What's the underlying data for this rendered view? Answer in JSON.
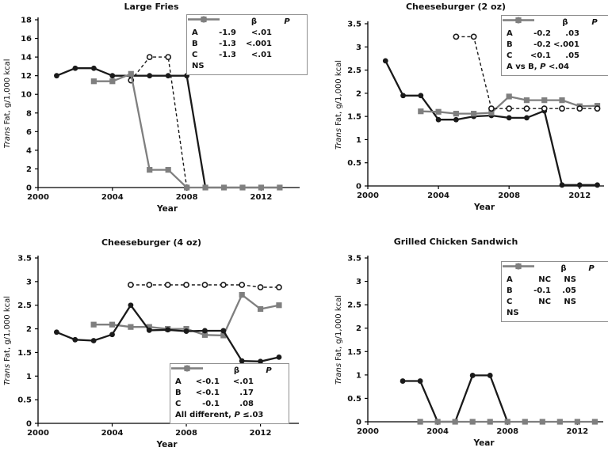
{
  "colors": {
    "black": "#1a1a1a",
    "gray": "#7f7f7f",
    "legend_border": "#8f8f8f",
    "background": "#ffffff"
  },
  "chart_data": [
    {
      "type": "line",
      "title": "Large Fries",
      "xlabel": "Year",
      "ylabel": {
        "italic": "Trans",
        "rest": "Fat, g/1,000 kcal"
      },
      "xlim": [
        2000,
        2013.9
      ],
      "ylim": [
        0,
        18
      ],
      "xticks": [
        "2000",
        "2004",
        "2008",
        "2012"
      ],
      "yticks": [
        "0",
        "2",
        "4",
        "6",
        "8",
        "10",
        "12",
        "14",
        "16",
        "18"
      ],
      "legend_position": "top-right",
      "grid": false,
      "series": [
        {
          "key": "A",
          "points": [
            [
              2005,
              11.5
            ],
            [
              2006,
              14
            ],
            [
              2007,
              14
            ],
            [
              2008,
              0
            ]
          ]
        },
        {
          "key": "B",
          "points": [
            [
              2001,
              12
            ],
            [
              2002,
              12.8
            ],
            [
              2003,
              12.8
            ],
            [
              2004,
              12
            ],
            [
              2005,
              12
            ],
            [
              2006,
              12
            ],
            [
              2007,
              12
            ],
            [
              2008,
              12
            ],
            [
              2009,
              0
            ],
            [
              2010,
              0
            ],
            [
              2011,
              0
            ],
            [
              2012,
              0
            ],
            [
              2013,
              0
            ]
          ]
        },
        {
          "key": "C",
          "points": [
            [
              2003,
              11.4
            ],
            [
              2004,
              11.4
            ],
            [
              2005,
              12.2
            ],
            [
              2006,
              1.9
            ],
            [
              2007,
              1.9
            ],
            [
              2008,
              0
            ],
            [
              2009,
              0
            ],
            [
              2010,
              0
            ],
            [
              2011,
              0
            ],
            [
              2012,
              0
            ],
            [
              2013,
              0
            ]
          ]
        }
      ],
      "legend": {
        "header": {
          "beta": "β",
          "p": "P"
        },
        "rows": [
          {
            "label": "A",
            "beta": "-1.9",
            "p": "<.01"
          },
          {
            "label": "B",
            "beta": "-1.3",
            "p": "<.001"
          },
          {
            "label": "C",
            "beta": "-1.3",
            "p": "<.01"
          }
        ],
        "note": [
          {
            "t": "NS"
          }
        ]
      }
    },
    {
      "type": "line",
      "title": "Cheeseburger (2 oz)",
      "xlabel": "Year",
      "ylabel": {
        "italic": "Trans",
        "rest": "Fat, g/1,000 kcal"
      },
      "xlim": [
        2000,
        2013.2
      ],
      "ylim": [
        0,
        3.5
      ],
      "xticks": [
        "2000",
        "2004",
        "2008",
        "2012"
      ],
      "yticks": [
        "0",
        "0.5",
        "1",
        "1.5",
        "2",
        "2.5",
        "3",
        "3.5"
      ],
      "legend_position": "top-right",
      "grid": false,
      "series": [
        {
          "key": "A",
          "points": [
            [
              2005,
              3.22
            ],
            [
              2006,
              3.22
            ],
            [
              2007,
              1.67
            ],
            [
              2008,
              1.67
            ],
            [
              2009,
              1.67
            ],
            [
              2010,
              1.67
            ],
            [
              2011,
              1.67
            ],
            [
              2012,
              1.67
            ],
            [
              2013,
              1.67
            ]
          ]
        },
        {
          "key": "B",
          "points": [
            [
              2001,
              2.7
            ],
            [
              2002,
              1.95
            ],
            [
              2003,
              1.95
            ],
            [
              2004,
              1.43
            ],
            [
              2005,
              1.43
            ],
            [
              2006,
              1.5
            ],
            [
              2007,
              1.52
            ],
            [
              2008,
              1.47
            ],
            [
              2009,
              1.47
            ],
            [
              2010,
              1.62
            ],
            [
              2011,
              0.02
            ],
            [
              2012,
              0.02
            ],
            [
              2013,
              0.02
            ]
          ]
        },
        {
          "key": "C",
          "points": [
            [
              2003,
              1.61
            ],
            [
              2004,
              1.6
            ],
            [
              2005,
              1.56
            ],
            [
              2006,
              1.56
            ],
            [
              2007,
              1.58
            ],
            [
              2008,
              1.93
            ],
            [
              2009,
              1.85
            ],
            [
              2010,
              1.85
            ],
            [
              2011,
              1.85
            ],
            [
              2012,
              1.72
            ],
            [
              2013,
              1.73
            ]
          ]
        }
      ],
      "legend": {
        "header": {
          "beta": "β",
          "p": "P"
        },
        "rows": [
          {
            "label": "A",
            "beta": "-0.2",
            "p": ".03"
          },
          {
            "label": "B",
            "beta": "-0.2",
            "p": "<.001"
          },
          {
            "label": "C",
            "beta": "<0.1",
            "p": ".05"
          }
        ],
        "note": [
          {
            "t": "A vs B, "
          },
          {
            "t": "P",
            "i": true
          },
          {
            "t": " <.04"
          }
        ]
      }
    },
    {
      "type": "line",
      "title": "Cheeseburger (4 oz)",
      "xlabel": "Year",
      "ylabel": {
        "italic": "Trans",
        "rest": "Fat, g/1,000 kcal"
      },
      "xlim": [
        2000,
        2013.9
      ],
      "ylim": [
        0,
        3.5
      ],
      "xticks": [
        "2000",
        "2004",
        "2008",
        "2012"
      ],
      "yticks": [
        "0",
        "0.5",
        "1",
        "1.5",
        "2",
        "2.5",
        "3",
        "3.5"
      ],
      "legend_position": "bottom-right",
      "grid": false,
      "series": [
        {
          "key": "A",
          "points": [
            [
              2005,
              2.93
            ],
            [
              2006,
              2.93
            ],
            [
              2007,
              2.93
            ],
            [
              2008,
              2.93
            ],
            [
              2009,
              2.93
            ],
            [
              2010,
              2.93
            ],
            [
              2011,
              2.93
            ],
            [
              2012,
              2.88
            ],
            [
              2013,
              2.88
            ]
          ]
        },
        {
          "key": "B",
          "points": [
            [
              2001,
              1.93
            ],
            [
              2002,
              1.77
            ],
            [
              2003,
              1.75
            ],
            [
              2004,
              1.88
            ],
            [
              2005,
              2.5
            ],
            [
              2006,
              1.97
            ],
            [
              2007,
              1.98
            ],
            [
              2008,
              1.95
            ],
            [
              2009,
              1.96
            ],
            [
              2010,
              1.96
            ],
            [
              2011,
              1.32
            ],
            [
              2012,
              1.31
            ],
            [
              2013,
              1.4
            ]
          ]
        },
        {
          "key": "C",
          "points": [
            [
              2003,
              2.09
            ],
            [
              2004,
              2.09
            ],
            [
              2005,
              2.04
            ],
            [
              2006,
              2.04
            ],
            [
              2007,
              2.0
            ],
            [
              2008,
              2.0
            ],
            [
              2009,
              1.87
            ],
            [
              2010,
              1.86
            ],
            [
              2011,
              2.72
            ],
            [
              2012,
              2.42
            ],
            [
              2013,
              2.5
            ]
          ]
        }
      ],
      "legend": {
        "header": {
          "beta": "β",
          "p": "P"
        },
        "rows": [
          {
            "label": "A",
            "beta": "<-0.1",
            "p": "<.01"
          },
          {
            "label": "B",
            "beta": "<-0.1",
            "p": ".17"
          },
          {
            "label": "C",
            "beta": "-0.1",
            "p": ".08"
          }
        ],
        "note": [
          {
            "t": "All different, "
          },
          {
            "t": "P",
            "i": true
          },
          {
            "t": " ≤.03"
          }
        ]
      }
    },
    {
      "type": "line",
      "title": "Grilled Chicken Sandwich",
      "xlabel": "Year",
      "ylabel": {
        "italic": "Trans",
        "rest": "Fat, g/1,000 kcal"
      },
      "xlim": [
        2000,
        2013.3
      ],
      "ylim": [
        0,
        3.5
      ],
      "xticks": [
        "2000",
        "2004",
        "2008",
        "2012"
      ],
      "yticks": [
        "0",
        "0.5",
        "1",
        "1.5",
        "2",
        "2.5",
        "3",
        "3.5"
      ],
      "legend_position": "top-right",
      "grid": false,
      "series": [
        {
          "key": "B",
          "points": [
            [
              2002,
              0.87
            ],
            [
              2003,
              0.87
            ],
            [
              2004,
              0
            ],
            [
              2005,
              0
            ],
            [
              2006,
              0.99
            ],
            [
              2007,
              0.99
            ],
            [
              2008,
              0
            ]
          ]
        },
        {
          "key": "C",
          "points": [
            [
              2003,
              0
            ],
            [
              2004,
              0
            ],
            [
              2005,
              0
            ],
            [
              2006,
              0
            ],
            [
              2007,
              0
            ],
            [
              2008,
              0
            ],
            [
              2009,
              0
            ],
            [
              2010,
              0
            ],
            [
              2011,
              0
            ],
            [
              2012,
              0
            ],
            [
              2013,
              0
            ]
          ]
        }
      ],
      "legend": {
        "header": {
          "beta": "β",
          "p": "P"
        },
        "rows": [
          {
            "label": "A",
            "beta": "NC",
            "p": "NS"
          },
          {
            "label": "B",
            "beta": "-0.1",
            "p": ".05"
          },
          {
            "label": "C",
            "beta": "NC",
            "p": "NS"
          }
        ],
        "note": [
          {
            "t": "NS"
          }
        ]
      }
    }
  ]
}
